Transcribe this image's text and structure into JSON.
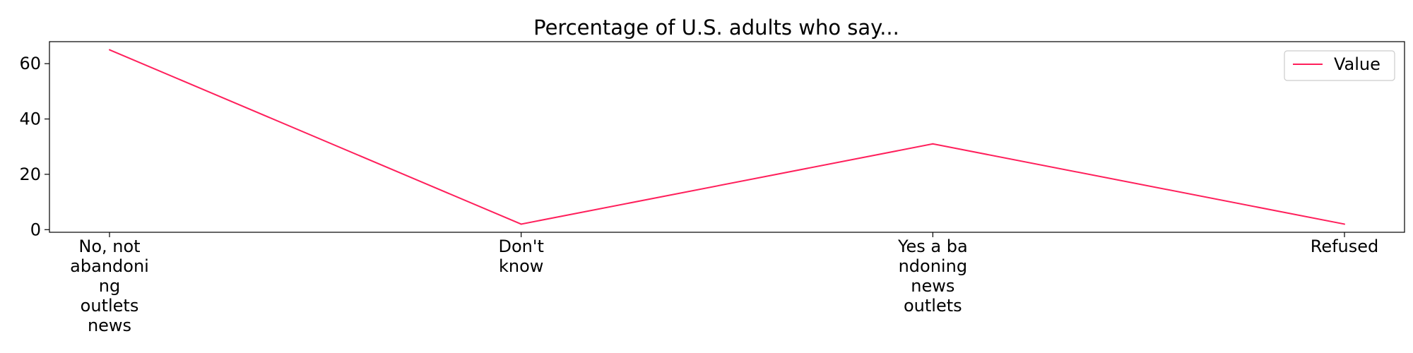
{
  "chart_data": {
    "type": "line",
    "title": "Percentage of U.S. adults who say...",
    "xlabel": "",
    "ylabel": "",
    "categories": [
      [
        "No, not",
        "abandoni",
        "ng",
        "outlets",
        "news"
      ],
      [
        "Don't",
        "know"
      ],
      [
        "Yes a ba",
        "ndoning",
        "news",
        "outlets"
      ],
      [
        "Refused"
      ]
    ],
    "series": [
      {
        "name": "Value",
        "values": [
          65,
          2,
          31,
          2
        ],
        "color": "#ff1f5b"
      }
    ],
    "ylim": [
      -0.95,
      67.95
    ],
    "yticks": [
      0,
      20,
      40,
      60
    ],
    "grid": false,
    "legend_position": "top-right"
  }
}
